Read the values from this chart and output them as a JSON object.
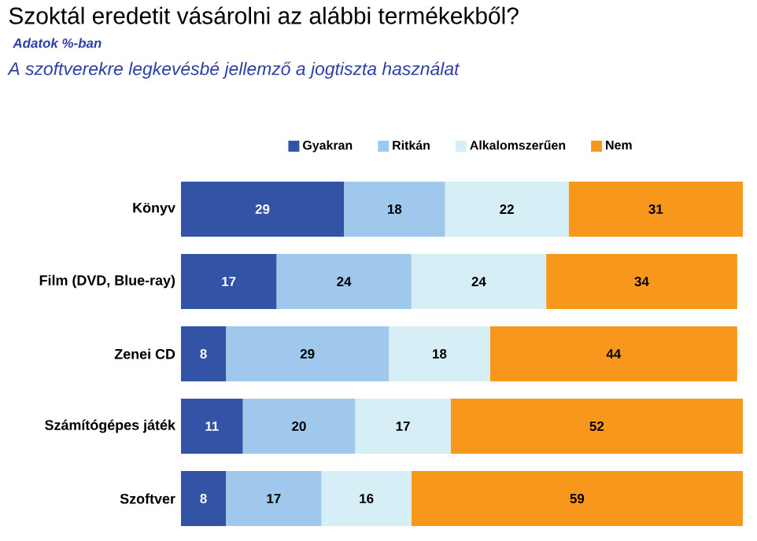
{
  "chart_data": {
    "type": "bar",
    "orientation": "horizontal",
    "stacked": true,
    "data_labels": true,
    "legend": "top",
    "title": "Szoktál eredetit vásárolni az alábbi termékekből?",
    "subtitle": "Adatok %-ban",
    "annotations": [
      "A szoftverekre legkevésbé jellemző a jogtiszta használat"
    ],
    "categories": [
      "Könyv",
      "Film (DVD, Blue-ray)",
      "Zenei CD",
      "Számítógépes játék",
      "Szoftver"
    ],
    "series": [
      {
        "name": "Gyakran",
        "color": "#3354a6",
        "values": [
          29,
          17,
          8,
          11,
          8
        ]
      },
      {
        "name": "Ritkán",
        "color": "#9fc8ec",
        "values": [
          18,
          24,
          29,
          20,
          17
        ]
      },
      {
        "name": "Alkalomszerűen",
        "color": "#d6eef6",
        "values": [
          22,
          24,
          18,
          17,
          16
        ]
      },
      {
        "name": "Nem",
        "color": "#f7981d",
        "values": [
          31,
          34,
          44,
          52,
          59
        ]
      }
    ]
  }
}
